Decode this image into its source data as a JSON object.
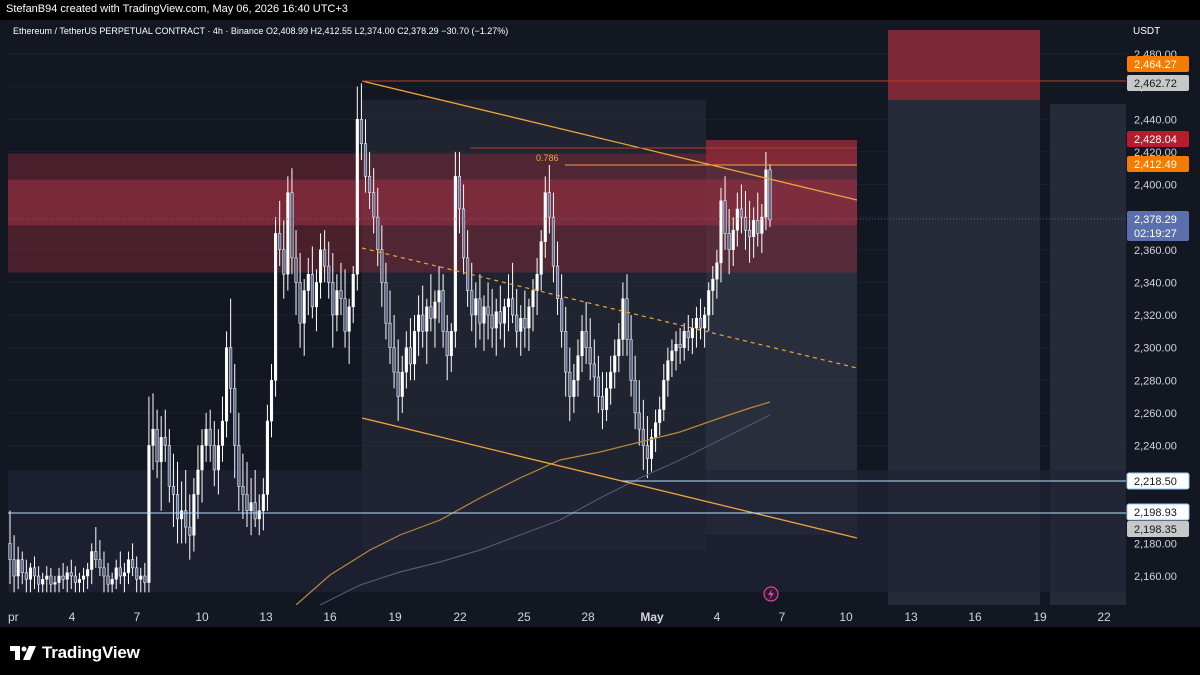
{
  "header": {
    "credit": "StefanB94 created with TradingView.com, May 06, 2026 16:40 UTC+3"
  },
  "legend": {
    "symbol": "Ethereum / TetherUS PERPETUAL CONTRACT · 4h · Binance",
    "open": "O2,408.99",
    "high": "H2,412.55",
    "low": "L2,374.00",
    "close": "C2,378.29",
    "change": "−30.70 (−1.27%)"
  },
  "price_axis": {
    "currency": "USDT",
    "ticks": [
      "2,480.00",
      "2,460.00",
      "2,440.00",
      "2,420.00",
      "2,400.00",
      "2,380.00",
      "2,360.00",
      "2,340.00",
      "2,320.00",
      "2,300.00",
      "2,280.00",
      "2,260.00",
      "2,240.00",
      "2,220.00",
      "2,200.00",
      "2,180.00",
      "2,160.00"
    ],
    "tags": [
      {
        "label": "2,464.27",
        "value": 2464.27,
        "bg": "#f57c00",
        "fg": "#ffffff"
      },
      {
        "label": "2,462.72",
        "value": 2462.72,
        "bg": "#c8c8c8",
        "fg": "#131722"
      },
      {
        "label": "2,428.04",
        "value": 2428.04,
        "bg": "#b71c2c",
        "fg": "#ffffff"
      },
      {
        "label": "2,412.49",
        "value": 2412.49,
        "bg": "#f57c00",
        "fg": "#ffffff"
      },
      {
        "label": "2,378.29",
        "value": 2378.29,
        "bg": "#5b6fae",
        "fg": "#ffffff"
      },
      {
        "label": "02:19:27",
        "value": 2378.29,
        "bg": "#5b6fae",
        "fg": "#ffffff",
        "countdown": true
      },
      {
        "label": "2,218.50",
        "value": 2218.5,
        "bg": "#ffffff",
        "fg": "#131722",
        "border": "#90caf9"
      },
      {
        "label": "2,198.93",
        "value": 2198.93,
        "bg": "#ffffff",
        "fg": "#131722",
        "border": "#90caf9"
      },
      {
        "label": "2,198.35",
        "value": 2198.35,
        "bg": "#c8c8c8",
        "fg": "#131722"
      }
    ]
  },
  "time_axis": {
    "ticks": [
      "pr",
      "4",
      "7",
      "10",
      "13",
      "16",
      "19",
      "22",
      "25",
      "28",
      "May",
      "4",
      "7",
      "10",
      "13",
      "16",
      "19",
      "22"
    ]
  },
  "annotations": {
    "fib_label": "0.786"
  },
  "colors": {
    "background": "#131722",
    "candle": "#ffffff",
    "resistance_zone": "#8e2a3a",
    "trend_line": "#f0a33a",
    "ma_fast": "#b8893a",
    "ma_slow": "#4e5a73"
  },
  "footer": {
    "brand": "TradingView",
    "logo_icon": "tradingview-logo-icon"
  },
  "chart_data": {
    "type": "candlestick",
    "timeframe": "4h",
    "symbol": "ETHUSDT.P",
    "ylim": [
      2150,
      2490
    ],
    "last_candle": {
      "open": 2408.99,
      "high": 2412.55,
      "low": 2374.0,
      "close": 2378.29
    },
    "candles": [
      [
        2180,
        2200,
        2155,
        2170
      ],
      [
        2170,
        2185,
        2150,
        2160
      ],
      [
        2160,
        2178,
        2152,
        2170
      ],
      [
        2170,
        2175,
        2155,
        2162
      ],
      [
        2162,
        2170,
        2150,
        2158
      ],
      [
        2158,
        2168,
        2150,
        2165
      ],
      [
        2165,
        2172,
        2152,
        2160
      ],
      [
        2160,
        2166,
        2150,
        2155
      ],
      [
        2155,
        2162,
        2150,
        2158
      ],
      [
        2158,
        2166,
        2150,
        2160
      ],
      [
        2160,
        2165,
        2150,
        2155
      ],
      [
        2155,
        2160,
        2150,
        2156
      ],
      [
        2156,
        2165,
        2150,
        2160
      ],
      [
        2160,
        2168,
        2152,
        2158
      ],
      [
        2158,
        2166,
        2150,
        2162
      ],
      [
        2162,
        2170,
        2152,
        2160
      ],
      [
        2160,
        2166,
        2150,
        2156
      ],
      [
        2156,
        2162,
        2150,
        2158
      ],
      [
        2158,
        2165,
        2150,
        2160
      ],
      [
        2160,
        2168,
        2152,
        2164
      ],
      [
        2164,
        2180,
        2155,
        2175
      ],
      [
        2175,
        2190,
        2165,
        2170
      ],
      [
        2170,
        2182,
        2160,
        2165
      ],
      [
        2165,
        2175,
        2150,
        2160
      ],
      [
        2160,
        2168,
        2150,
        2155
      ],
      [
        2155,
        2162,
        2150,
        2158
      ],
      [
        2158,
        2170,
        2152,
        2165
      ],
      [
        2165,
        2175,
        2155,
        2160
      ],
      [
        2160,
        2168,
        2150,
        2162
      ],
      [
        2162,
        2175,
        2155,
        2170
      ],
      [
        2170,
        2180,
        2160,
        2165
      ],
      [
        2165,
        2172,
        2150,
        2158
      ],
      [
        2158,
        2165,
        2150,
        2160
      ],
      [
        2160,
        2168,
        2150,
        2156
      ],
      [
        2156,
        2270,
        2150,
        2240
      ],
      [
        2240,
        2272,
        2225,
        2250
      ],
      [
        2250,
        2262,
        2220,
        2230
      ],
      [
        2230,
        2258,
        2200,
        2245
      ],
      [
        2245,
        2262,
        2230,
        2240
      ],
      [
        2240,
        2250,
        2205,
        2215
      ],
      [
        2215,
        2235,
        2190,
        2210
      ],
      [
        2210,
        2230,
        2180,
        2195
      ],
      [
        2195,
        2218,
        2180,
        2200
      ],
      [
        2200,
        2225,
        2180,
        2190
      ],
      [
        2190,
        2210,
        2170,
        2185
      ],
      [
        2185,
        2220,
        2175,
        2210
      ],
      [
        2210,
        2240,
        2195,
        2225
      ],
      [
        2225,
        2250,
        2205,
        2240
      ],
      [
        2240,
        2260,
        2230,
        2250
      ],
      [
        2250,
        2262,
        2230,
        2240
      ],
      [
        2240,
        2255,
        2215,
        2225
      ],
      [
        2225,
        2250,
        2210,
        2240
      ],
      [
        2240,
        2270,
        2230,
        2255
      ],
      [
        2255,
        2310,
        2245,
        2300
      ],
      [
        2300,
        2330,
        2260,
        2275
      ],
      [
        2275,
        2290,
        2220,
        2240
      ],
      [
        2240,
        2260,
        2200,
        2215
      ],
      [
        2215,
        2235,
        2195,
        2210
      ],
      [
        2210,
        2230,
        2190,
        2200
      ],
      [
        2200,
        2220,
        2185,
        2205
      ],
      [
        2205,
        2225,
        2190,
        2195
      ],
      [
        2195,
        2210,
        2185,
        2200
      ],
      [
        2200,
        2220,
        2188,
        2210
      ],
      [
        2210,
        2265,
        2200,
        2255
      ],
      [
        2255,
        2290,
        2245,
        2280
      ],
      [
        2280,
        2380,
        2270,
        2370
      ],
      [
        2370,
        2390,
        2350,
        2360
      ],
      [
        2360,
        2378,
        2330,
        2345
      ],
      [
        2345,
        2405,
        2335,
        2395
      ],
      [
        2395,
        2410,
        2345,
        2355
      ],
      [
        2355,
        2372,
        2320,
        2340
      ],
      [
        2340,
        2358,
        2300,
        2315
      ],
      [
        2315,
        2342,
        2295,
        2335
      ],
      [
        2335,
        2355,
        2320,
        2345
      ],
      [
        2345,
        2362,
        2318,
        2325
      ],
      [
        2325,
        2348,
        2310,
        2340
      ],
      [
        2340,
        2370,
        2330,
        2360
      ],
      [
        2360,
        2372,
        2340,
        2350
      ],
      [
        2350,
        2365,
        2330,
        2340
      ],
      [
        2340,
        2358,
        2300,
        2320
      ],
      [
        2320,
        2345,
        2310,
        2335
      ],
      [
        2335,
        2352,
        2320,
        2330
      ],
      [
        2330,
        2348,
        2300,
        2310
      ],
      [
        2310,
        2330,
        2290,
        2325
      ],
      [
        2325,
        2350,
        2315,
        2345
      ],
      [
        2345,
        2460,
        2335,
        2440
      ],
      [
        2440,
        2462,
        2415,
        2425
      ],
      [
        2425,
        2440,
        2395,
        2405
      ],
      [
        2405,
        2420,
        2385,
        2395
      ],
      [
        2395,
        2410,
        2370,
        2380
      ],
      [
        2380,
        2398,
        2350,
        2360
      ],
      [
        2360,
        2375,
        2325,
        2340
      ],
      [
        2340,
        2352,
        2305,
        2315
      ],
      [
        2315,
        2335,
        2290,
        2300
      ],
      [
        2300,
        2320,
        2275,
        2285
      ],
      [
        2285,
        2305,
        2255,
        2270
      ],
      [
        2270,
        2295,
        2260,
        2285
      ],
      [
        2285,
        2310,
        2275,
        2300
      ],
      [
        2300,
        2318,
        2280,
        2290
      ],
      [
        2290,
        2320,
        2280,
        2310
      ],
      [
        2310,
        2332,
        2295,
        2320
      ],
      [
        2320,
        2338,
        2300,
        2310
      ],
      [
        2310,
        2330,
        2290,
        2325
      ],
      [
        2325,
        2345,
        2310,
        2318
      ],
      [
        2318,
        2335,
        2300,
        2328
      ],
      [
        2328,
        2350,
        2315,
        2335
      ],
      [
        2335,
        2345,
        2300,
        2310
      ],
      [
        2310,
        2320,
        2280,
        2295
      ],
      [
        2295,
        2315,
        2285,
        2310
      ],
      [
        2310,
        2420,
        2300,
        2405
      ],
      [
        2405,
        2420,
        2370,
        2385
      ],
      [
        2385,
        2400,
        2345,
        2355
      ],
      [
        2355,
        2372,
        2325,
        2335
      ],
      [
        2335,
        2352,
        2310,
        2320
      ],
      [
        2320,
        2340,
        2300,
        2330
      ],
      [
        2330,
        2345,
        2305,
        2315
      ],
      [
        2315,
        2332,
        2298,
        2325
      ],
      [
        2325,
        2340,
        2305,
        2320
      ],
      [
        2320,
        2336,
        2300,
        2312
      ],
      [
        2312,
        2330,
        2295,
        2322
      ],
      [
        2322,
        2338,
        2305,
        2315
      ],
      [
        2315,
        2330,
        2300,
        2325
      ],
      [
        2325,
        2345,
        2310,
        2330
      ],
      [
        2330,
        2352,
        2315,
        2320
      ],
      [
        2320,
        2336,
        2300,
        2310
      ],
      [
        2310,
        2326,
        2295,
        2318
      ],
      [
        2318,
        2335,
        2300,
        2312
      ],
      [
        2312,
        2330,
        2298,
        2325
      ],
      [
        2325,
        2342,
        2310,
        2335
      ],
      [
        2335,
        2355,
        2320,
        2345
      ],
      [
        2345,
        2372,
        2335,
        2365
      ],
      [
        2365,
        2405,
        2355,
        2395
      ],
      [
        2395,
        2412,
        2370,
        2380
      ],
      [
        2380,
        2395,
        2340,
        2350
      ],
      [
        2350,
        2365,
        2320,
        2330
      ],
      [
        2330,
        2345,
        2300,
        2310
      ],
      [
        2310,
        2325,
        2270,
        2285
      ],
      [
        2285,
        2300,
        2255,
        2270
      ],
      [
        2270,
        2290,
        2260,
        2280
      ],
      [
        2280,
        2305,
        2270,
        2295
      ],
      [
        2295,
        2320,
        2285,
        2310
      ],
      [
        2310,
        2328,
        2290,
        2300
      ],
      [
        2300,
        2318,
        2280,
        2290
      ],
      [
        2290,
        2305,
        2270,
        2282
      ],
      [
        2282,
        2295,
        2260,
        2270
      ],
      [
        2270,
        2285,
        2250,
        2262
      ],
      [
        2262,
        2285,
        2255,
        2275
      ],
      [
        2275,
        2295,
        2265,
        2285
      ],
      [
        2285,
        2305,
        2275,
        2295
      ],
      [
        2295,
        2315,
        2285,
        2305
      ],
      [
        2305,
        2340,
        2295,
        2330
      ],
      [
        2330,
        2345,
        2295,
        2305
      ],
      [
        2305,
        2320,
        2270,
        2280
      ],
      [
        2280,
        2295,
        2250,
        2260
      ],
      [
        2260,
        2280,
        2240,
        2250
      ],
      [
        2250,
        2268,
        2225,
        2240
      ],
      [
        2240,
        2258,
        2220,
        2232
      ],
      [
        2232,
        2250,
        2224,
        2245
      ],
      [
        2245,
        2262,
        2236,
        2254
      ],
      [
        2254,
        2270,
        2246,
        2262
      ],
      [
        2262,
        2290,
        2255,
        2280
      ],
      [
        2280,
        2300,
        2270,
        2292
      ],
      [
        2292,
        2305,
        2282,
        2298
      ],
      [
        2298,
        2310,
        2286,
        2302
      ],
      [
        2302,
        2312,
        2290,
        2300
      ],
      [
        2300,
        2315,
        2292,
        2310
      ],
      [
        2310,
        2320,
        2298,
        2306
      ],
      [
        2306,
        2318,
        2296,
        2312
      ],
      [
        2312,
        2325,
        2300,
        2318
      ],
      [
        2318,
        2330,
        2305,
        2312
      ],
      [
        2312,
        2325,
        2300,
        2320
      ],
      [
        2320,
        2340,
        2310,
        2335
      ],
      [
        2335,
        2350,
        2320,
        2342
      ],
      [
        2342,
        2360,
        2330,
        2352
      ],
      [
        2352,
        2398,
        2340,
        2390
      ],
      [
        2390,
        2405,
        2360,
        2370
      ],
      [
        2370,
        2385,
        2345,
        2360
      ],
      [
        2360,
        2380,
        2350,
        2372
      ],
      [
        2372,
        2395,
        2362,
        2385
      ],
      [
        2385,
        2400,
        2370,
        2380
      ],
      [
        2380,
        2396,
        2360,
        2372
      ],
      [
        2372,
        2390,
        2352,
        2368
      ],
      [
        2368,
        2386,
        2355,
        2378
      ],
      [
        2378,
        2395,
        2362,
        2370
      ],
      [
        2370,
        2388,
        2358,
        2380
      ],
      [
        2380,
        2420,
        2372,
        2409
      ],
      [
        2408.99,
        2412.55,
        2374.0,
        2378.29
      ]
    ]
  }
}
